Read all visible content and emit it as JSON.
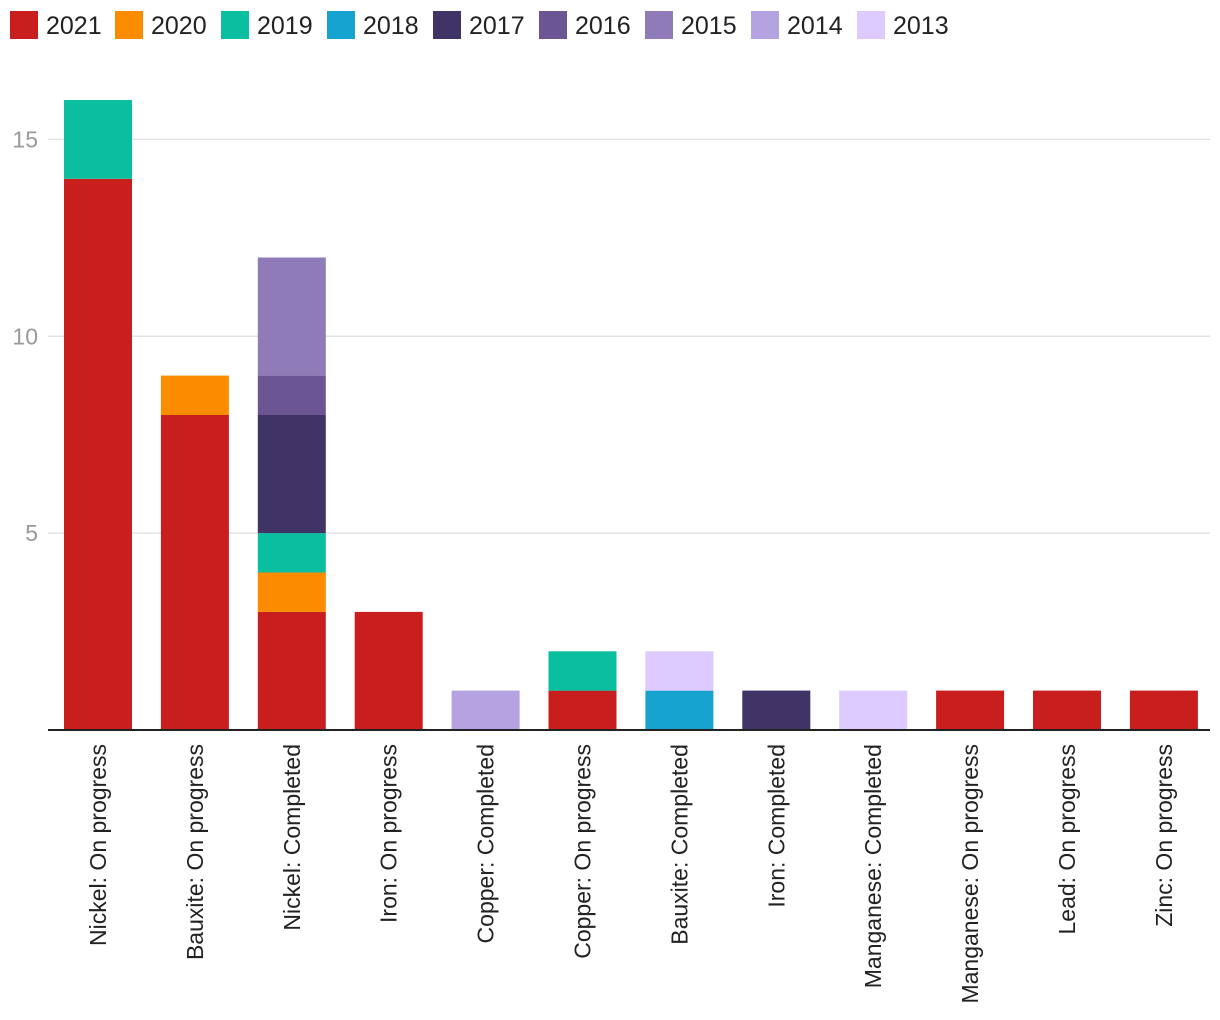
{
  "chart_data": {
    "type": "bar",
    "stacked": true,
    "categories": [
      "Nickel: On progress",
      "Bauxite: On progress",
      "Nickel: Completed",
      "Iron: On progress",
      "Copper: Completed",
      "Copper: On progress",
      "Bauxite: Completed",
      "Iron: Completed",
      "Manganese: Completed",
      "Manganese: On progress",
      "Lead: On progress",
      "Zinc: On progress"
    ],
    "series": [
      {
        "name": "2021",
        "color": "#c81e1e",
        "values": [
          14,
          8,
          3,
          3,
          0,
          1,
          0,
          0,
          0,
          1,
          1,
          1
        ]
      },
      {
        "name": "2020",
        "color": "#fb8c00",
        "values": [
          0,
          1,
          1,
          0,
          0,
          0,
          0,
          0,
          0,
          0,
          0,
          0
        ]
      },
      {
        "name": "2019",
        "color": "#0abfa0",
        "values": [
          2,
          0,
          1,
          0,
          0,
          1,
          0,
          0,
          0,
          0,
          0,
          0
        ]
      },
      {
        "name": "2018",
        "color": "#17a3d0",
        "values": [
          0,
          0,
          0,
          0,
          0,
          0,
          1,
          0,
          0,
          0,
          0,
          0
        ]
      },
      {
        "name": "2017",
        "color": "#403466",
        "values": [
          0,
          0,
          3,
          0,
          0,
          0,
          0,
          1,
          0,
          0,
          0,
          0
        ]
      },
      {
        "name": "2016",
        "color": "#6b5693",
        "values": [
          0,
          0,
          1,
          0,
          0,
          0,
          0,
          0,
          0,
          0,
          0,
          0
        ]
      },
      {
        "name": "2015",
        "color": "#8f7bb8",
        "values": [
          0,
          0,
          3,
          0,
          0,
          0,
          0,
          0,
          0,
          0,
          0,
          0
        ]
      },
      {
        "name": "2014",
        "color": "#b4a3e0",
        "values": [
          0,
          0,
          0,
          0,
          1,
          0,
          0,
          0,
          0,
          0,
          0,
          0
        ]
      },
      {
        "name": "2013",
        "color": "#ddcbff",
        "values": [
          0,
          0,
          0,
          0,
          0,
          0,
          1,
          0,
          1,
          0,
          0,
          0
        ]
      }
    ],
    "yticks": [
      5,
      10,
      15
    ],
    "ylim": [
      0,
      16
    ],
    "grid": true,
    "legend_position": "top"
  }
}
